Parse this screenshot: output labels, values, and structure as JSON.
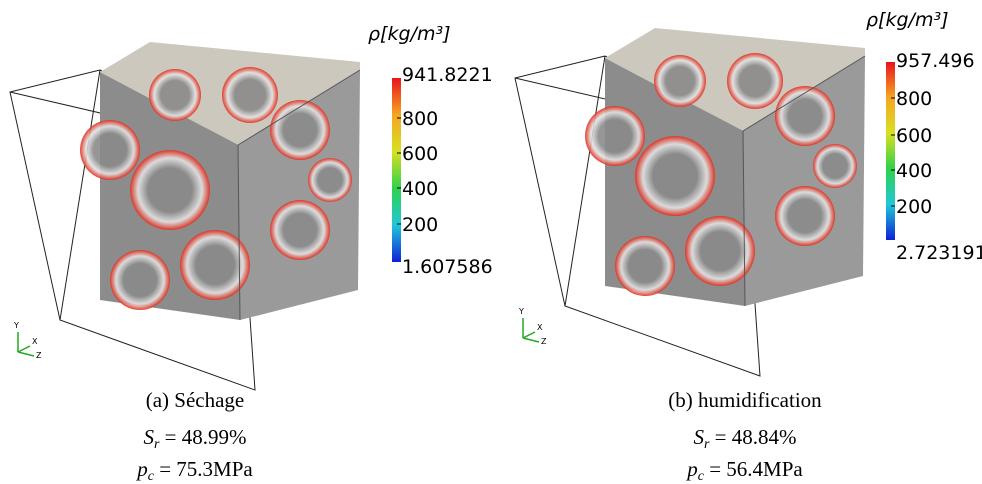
{
  "panels": [
    {
      "colorbar": {
        "title": "ρ[kg/m³]",
        "labels": [
          "941.8221",
          "800",
          "600",
          "400",
          "200",
          "1.607586"
        ]
      },
      "axes": [
        "Y",
        "X",
        "Z"
      ],
      "caption": "(a) Séchage",
      "saturation": {
        "symbol": "S",
        "subscript": "r",
        "text": " = 48.99%"
      },
      "pressure": {
        "symbol": "p",
        "subscript": "c",
        "text": " = 75.3MPa"
      }
    },
    {
      "colorbar": {
        "title": "ρ[kg/m³]",
        "labels": [
          "957.496",
          "800",
          "600",
          "400",
          "200",
          "2.723191"
        ]
      },
      "axes": [
        "Y",
        "X",
        "Z"
      ],
      "caption": "(b) humidification",
      "saturation": {
        "symbol": "S",
        "subscript": "r",
        "text": " = 48.84%"
      },
      "pressure": {
        "symbol": "p",
        "subscript": "c",
        "text": " = 56.4MPa"
      }
    }
  ]
}
